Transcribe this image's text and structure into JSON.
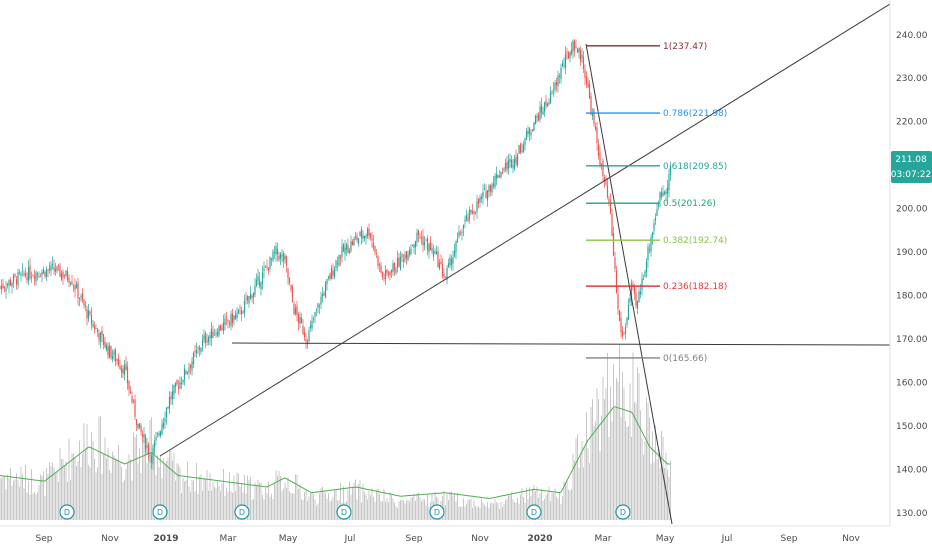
{
  "chart_data": {
    "type": "candlestick",
    "price_axis": {
      "ylim": [
        127,
        248
      ],
      "ticks": [
        "240.00",
        "230.00",
        "220.00",
        "210.00",
        "200.00",
        "190.00",
        "180.00",
        "170.00",
        "160.00",
        "150.00",
        "140.00",
        "130.00"
      ],
      "tick_values": [
        240,
        230,
        220,
        210,
        200,
        190,
        180,
        170,
        160,
        150,
        140,
        130
      ]
    },
    "time_axis": {
      "labels": [
        "Sep",
        "Nov",
        "2019",
        "Mar",
        "May",
        "Jul",
        "Sep",
        "Nov",
        "2020",
        "Mar",
        "May",
        "Jul",
        "Sep",
        "Nov"
      ],
      "bold": [
        false,
        false,
        true,
        false,
        false,
        false,
        false,
        false,
        true,
        false,
        false,
        false,
        false,
        false
      ]
    },
    "last_price": {
      "value": "211.08",
      "countdown": "03:07:22",
      "color": "#26a69a"
    },
    "fib_levels": [
      {
        "label": "1(237.47)",
        "price": 237.47,
        "color": "#8e2b3a"
      },
      {
        "label": "0.786(221.98)",
        "price": 221.98,
        "color": "#2196f3"
      },
      {
        "label": "0.618(209.85)",
        "price": 209.85,
        "color": "#26a69a"
      },
      {
        "label": "0.5(201.26)",
        "price": 201.26,
        "color": "#26a36b"
      },
      {
        "label": "0.382(192.74)",
        "price": 192.74,
        "color": "#8bc34a"
      },
      {
        "label": "0.236(182.18)",
        "price": 182.18,
        "color": "#e53935"
      },
      {
        "label": "0(165.66)",
        "price": 165.66,
        "color": "#808080"
      }
    ],
    "price_path": [
      [
        0,
        182
      ],
      [
        0.03,
        185
      ],
      [
        0.06,
        186
      ],
      [
        0.08,
        184
      ],
      [
        0.1,
        175
      ],
      [
        0.12,
        168
      ],
      [
        0.14,
        163
      ],
      [
        0.155,
        150
      ],
      [
        0.17,
        143
      ],
      [
        0.19,
        156
      ],
      [
        0.21,
        163
      ],
      [
        0.23,
        170
      ],
      [
        0.25,
        173
      ],
      [
        0.27,
        176
      ],
      [
        0.29,
        183
      ],
      [
        0.31,
        190
      ],
      [
        0.32,
        188
      ],
      [
        0.33,
        177
      ],
      [
        0.345,
        170
      ],
      [
        0.36,
        179
      ],
      [
        0.38,
        189
      ],
      [
        0.4,
        193
      ],
      [
        0.415,
        195
      ],
      [
        0.43,
        184
      ],
      [
        0.45,
        188
      ],
      [
        0.47,
        194
      ],
      [
        0.49,
        189
      ],
      [
        0.5,
        184
      ],
      [
        0.52,
        196
      ],
      [
        0.54,
        202
      ],
      [
        0.56,
        208
      ],
      [
        0.58,
        212
      ],
      [
        0.6,
        220
      ],
      [
        0.62,
        226
      ],
      [
        0.63,
        232
      ],
      [
        0.645,
        238
      ],
      [
        0.655,
        234
      ],
      [
        0.665,
        222
      ],
      [
        0.675,
        210
      ],
      [
        0.685,
        200
      ],
      [
        0.69,
        188
      ],
      [
        0.695,
        175
      ],
      [
        0.7,
        170
      ],
      [
        0.71,
        182
      ],
      [
        0.715,
        177
      ],
      [
        0.72,
        182
      ],
      [
        0.73,
        192
      ],
      [
        0.74,
        202
      ],
      [
        0.75,
        206
      ],
      [
        0.755,
        211
      ]
    ],
    "volume_path": [
      [
        0,
        0.3
      ],
      [
        0.05,
        0.25
      ],
      [
        0.1,
        0.55
      ],
      [
        0.14,
        0.4
      ],
      [
        0.17,
        0.5
      ],
      [
        0.2,
        0.3
      ],
      [
        0.25,
        0.25
      ],
      [
        0.3,
        0.2
      ],
      [
        0.32,
        0.28
      ],
      [
        0.35,
        0.15
      ],
      [
        0.4,
        0.2
      ],
      [
        0.45,
        0.12
      ],
      [
        0.5,
        0.15
      ],
      [
        0.55,
        0.1
      ],
      [
        0.6,
        0.18
      ],
      [
        0.63,
        0.15
      ],
      [
        0.66,
        0.6
      ],
      [
        0.69,
        0.9
      ],
      [
        0.71,
        0.85
      ],
      [
        0.73,
        0.55
      ],
      [
        0.75,
        0.4
      ]
    ],
    "dividend_markers": [
      "D",
      "D",
      "D",
      "D",
      "D",
      "D",
      "D"
    ],
    "grid": false,
    "legend": "none"
  }
}
